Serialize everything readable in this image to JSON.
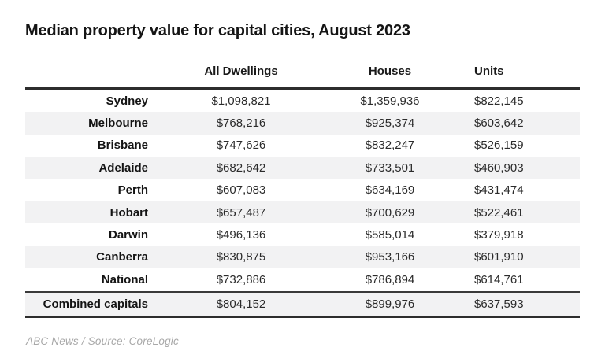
{
  "title": "Median property value for capital cities, August 2023",
  "footer": {
    "attribution": "ABC News / Source: CoreLogic"
  },
  "colors": {
    "background": "#ffffff",
    "rule_dark": "#2d2d2d",
    "zebra_stripe": "#f2f2f3",
    "title_text": "#151515",
    "value_text": "#2b2b2b",
    "attribution_text": "#a8a8a8"
  },
  "chart_data": {
    "type": "table",
    "title": "Median property value for capital cities, August 2023",
    "columns": [
      {
        "key": "city",
        "label": ""
      },
      {
        "key": "all_dwellings",
        "label": "All Dwellings"
      },
      {
        "key": "houses",
        "label": "Houses"
      },
      {
        "key": "units",
        "label": "Units"
      }
    ],
    "rows": [
      {
        "city": "Sydney",
        "all_dwellings": "$1,098,821",
        "houses": "$1,359,936",
        "units": "$822,145"
      },
      {
        "city": "Melbourne",
        "all_dwellings": "$768,216",
        "houses": "$925,374",
        "units": "$603,642"
      },
      {
        "city": "Brisbane",
        "all_dwellings": "$747,626",
        "houses": "$832,247",
        "units": "$526,159"
      },
      {
        "city": "Adelaide",
        "all_dwellings": "$682,642",
        "houses": "$733,501",
        "units": "$460,903"
      },
      {
        "city": "Perth",
        "all_dwellings": "$607,083",
        "houses": "$634,169",
        "units": "$431,474"
      },
      {
        "city": "Hobart",
        "all_dwellings": "$657,487",
        "houses": "$700,629",
        "units": "$522,461"
      },
      {
        "city": "Darwin",
        "all_dwellings": "$496,136",
        "houses": "$585,014",
        "units": "$379,918"
      },
      {
        "city": "Canberra",
        "all_dwellings": "$830,875",
        "houses": "$953,166",
        "units": "$601,910"
      },
      {
        "city": "National",
        "all_dwellings": "$732,886",
        "houses": "$786,894",
        "units": "$614,761"
      }
    ],
    "combined_row": {
      "city": "Combined capitals",
      "all_dwellings": "$804,152",
      "houses": "$899,976",
      "units": "$637,593"
    }
  }
}
